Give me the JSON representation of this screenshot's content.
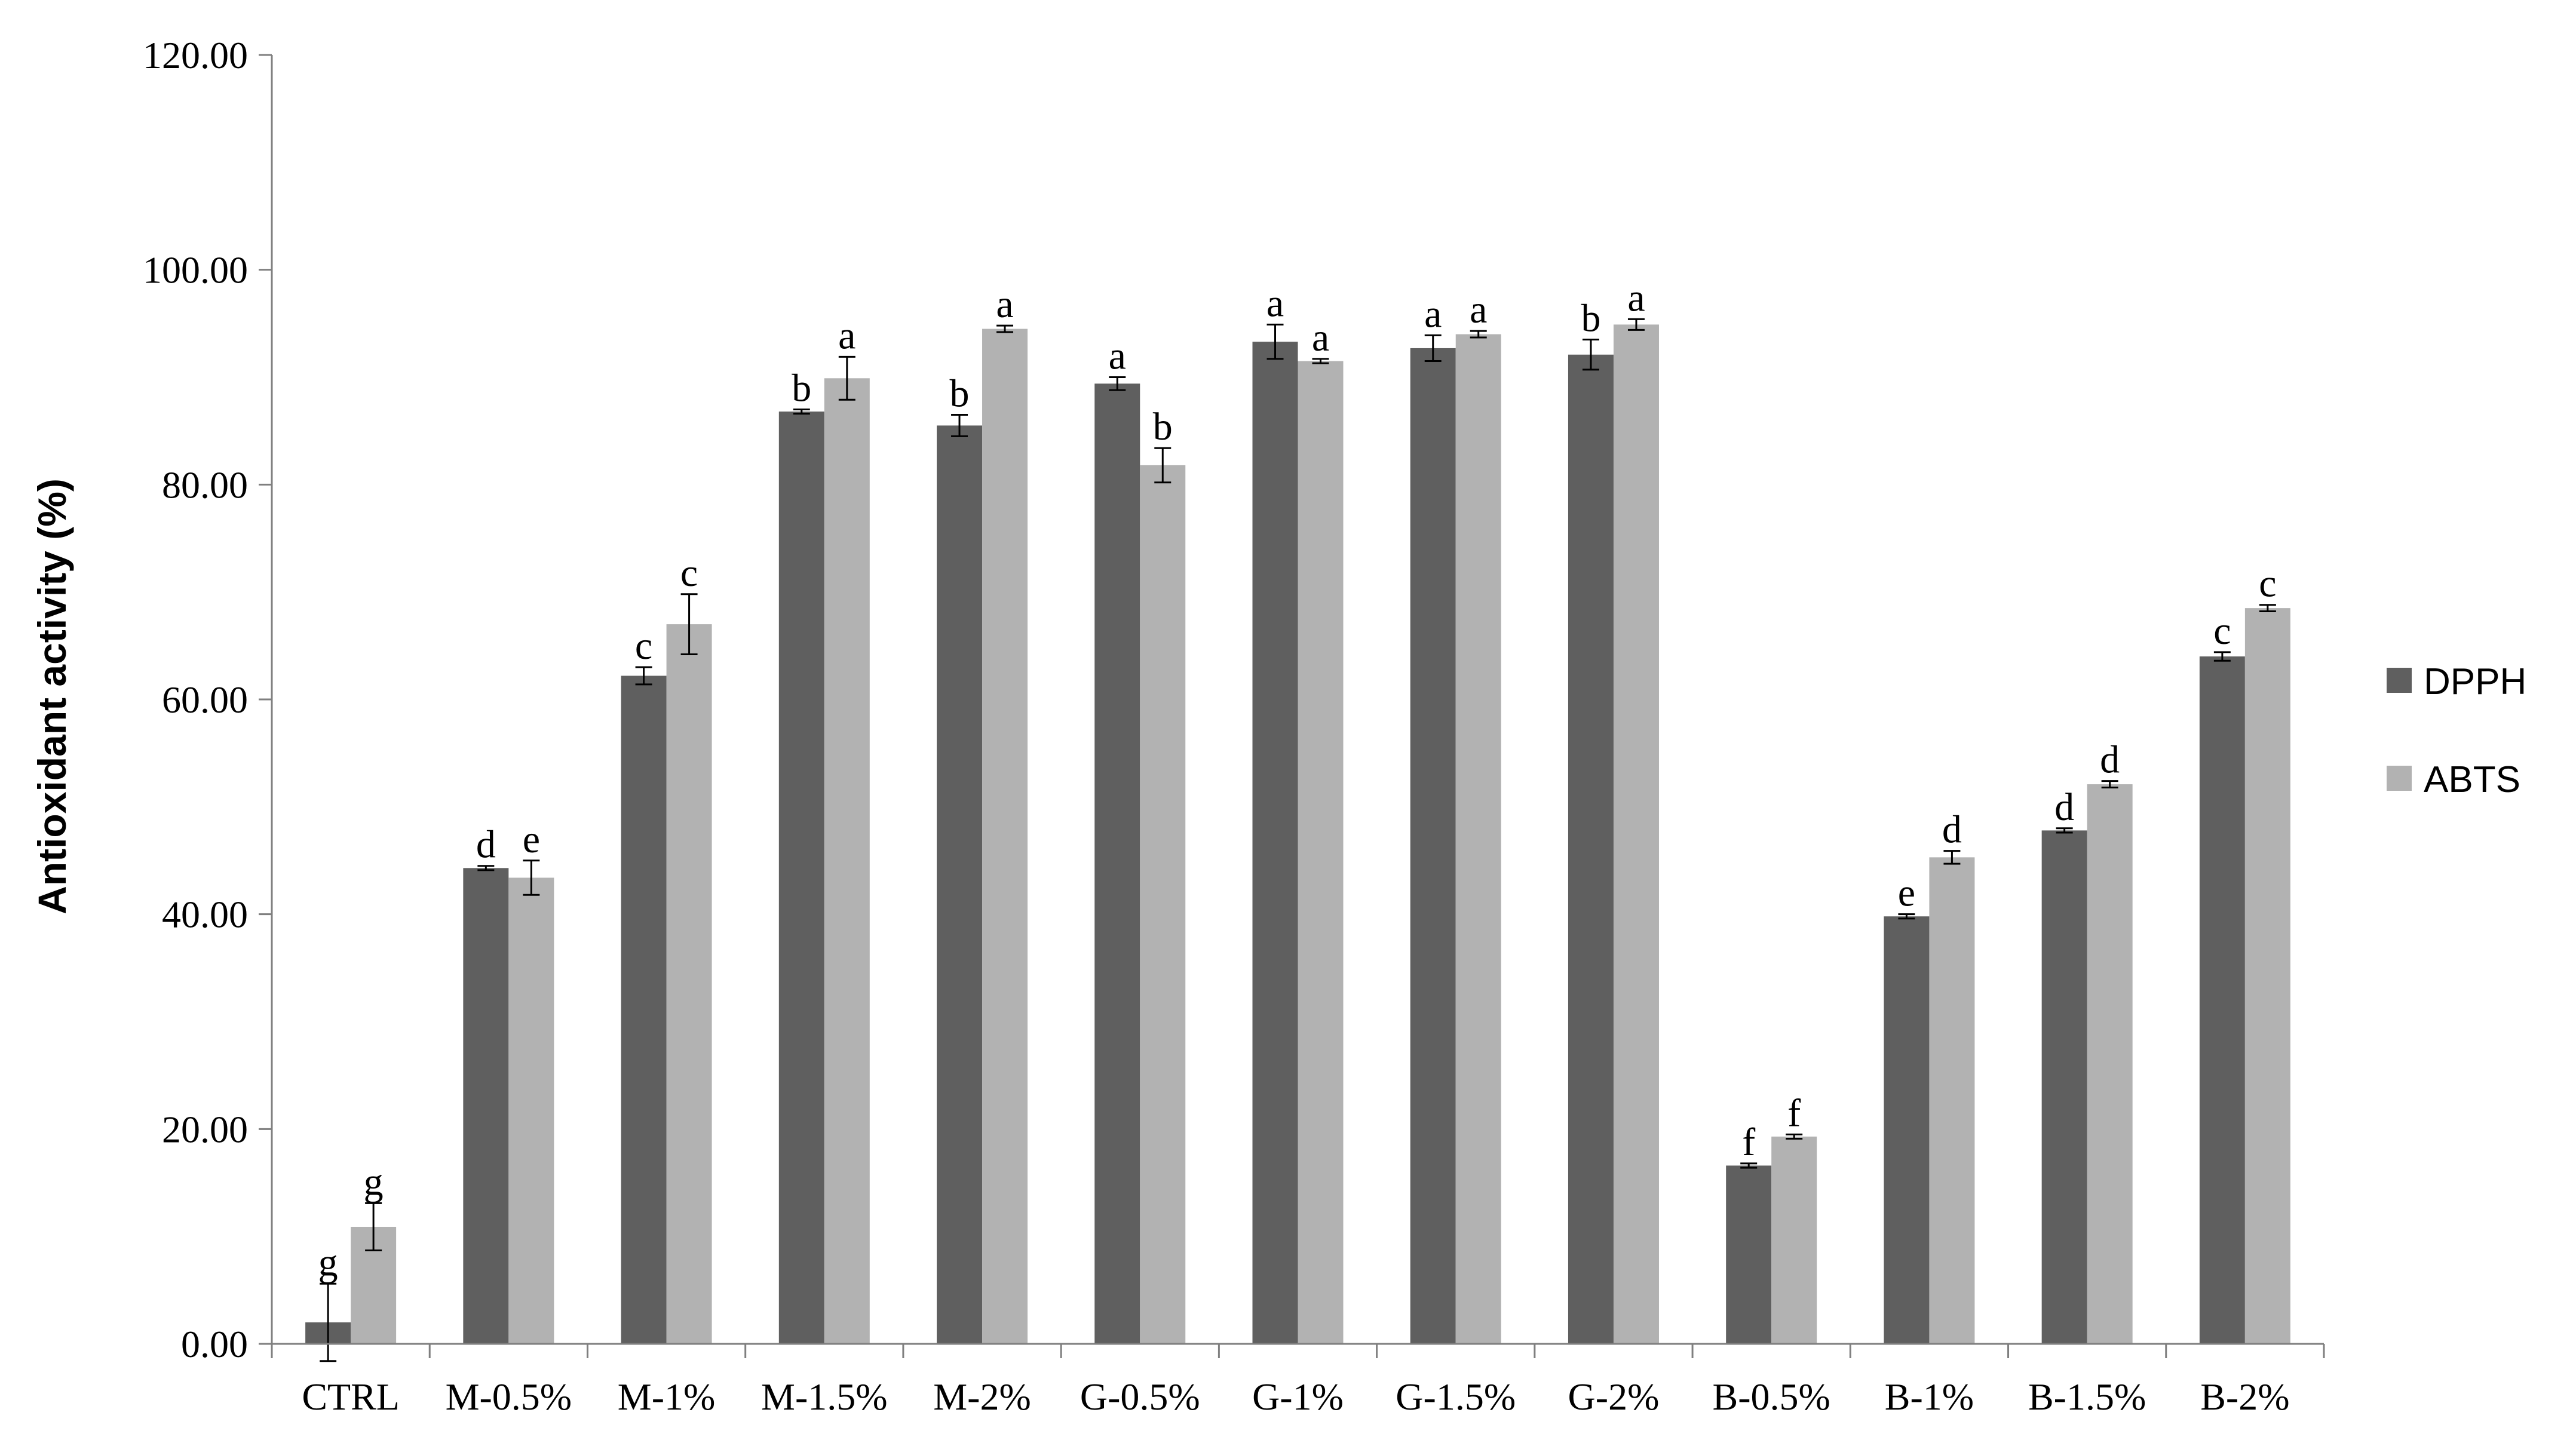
{
  "chart_data": {
    "type": "bar",
    "title": "",
    "xlabel": "",
    "ylabel": "Antioxidant activity (%)",
    "ylim": [
      0,
      120
    ],
    "yticks": [
      "0.00",
      "20.00",
      "40.00",
      "60.00",
      "80.00",
      "100.00",
      "120.00"
    ],
    "grid": false,
    "legend_position": "right",
    "categories": [
      "CTRL",
      "M-0.5%",
      "M-1%",
      "M-1.5%",
      "M-2%",
      "G-0.5%",
      "G-1%",
      "G-1.5%",
      "G-2%",
      "B-0.5%",
      "B-1%",
      "B-1.5%",
      "B-2%"
    ],
    "series": [
      {
        "name": "DPPH",
        "color": "#5f5f5f",
        "values": [
          2.0,
          44.3,
          62.2,
          86.8,
          85.5,
          89.4,
          93.3,
          92.7,
          92.1,
          16.6,
          39.8,
          47.8,
          64.0
        ],
        "errors": [
          3.6,
          0.2,
          0.8,
          0.2,
          1.0,
          0.6,
          1.6,
          1.2,
          1.4,
          0.2,
          0.2,
          0.2,
          0.4
        ],
        "letters": [
          "g",
          "d",
          "c",
          "b",
          "b",
          "a",
          "a",
          "a",
          "b",
          "f",
          "e",
          "d",
          "c"
        ]
      },
      {
        "name": "ABTS",
        "color": "#b2b2b2",
        "values": [
          10.9,
          43.4,
          67.0,
          89.9,
          94.5,
          81.8,
          91.5,
          94.0,
          94.9,
          19.3,
          45.3,
          52.1,
          68.5
        ],
        "errors": [
          2.2,
          1.6,
          2.8,
          2.0,
          0.3,
          1.6,
          0.2,
          0.3,
          0.5,
          0.2,
          0.6,
          0.3,
          0.3
        ],
        "letters": [
          "g",
          "e",
          "c",
          "a",
          "a",
          "b",
          "a",
          "a",
          "a",
          "f",
          "d",
          "d",
          "c"
        ]
      }
    ]
  }
}
